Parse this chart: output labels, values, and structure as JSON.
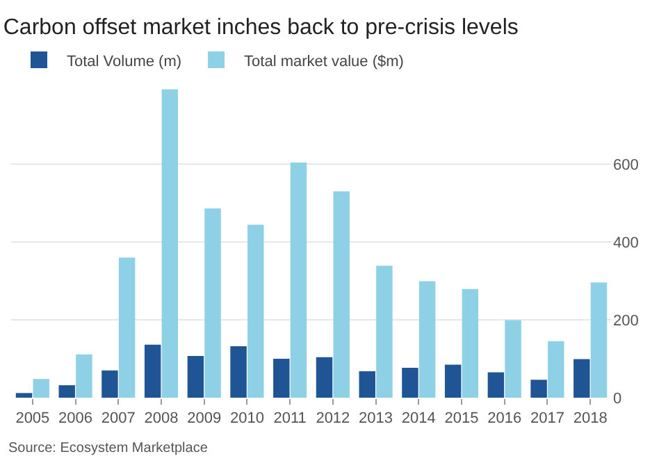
{
  "chart_data": {
    "type": "bar",
    "title": "Carbon offset market inches back to pre-crisis levels",
    "categories": [
      "2005",
      "2006",
      "2007",
      "2008",
      "2009",
      "2010",
      "2011",
      "2012",
      "2013",
      "2014",
      "2015",
      "2016",
      "2017",
      "2018"
    ],
    "series": [
      {
        "name": "Total Volume (m)",
        "color": "#1f5594",
        "values": [
          12,
          32,
          70,
          136,
          107,
          132,
          100,
          104,
          68,
          77,
          85,
          65,
          46,
          99
        ]
      },
      {
        "name": "Total market value ($m)",
        "color": "#8ed0e6",
        "values": [
          48,
          111,
          360,
          792,
          486,
          444,
          604,
          530,
          339,
          299,
          279,
          199,
          145,
          296
        ]
      }
    ],
    "ylim": [
      0,
      800
    ],
    "yticks": [
      0,
      200,
      400,
      600
    ],
    "grid": "y",
    "legend": "top left",
    "annotations": [
      "Source: Ecosystem Marketplace"
    ]
  }
}
